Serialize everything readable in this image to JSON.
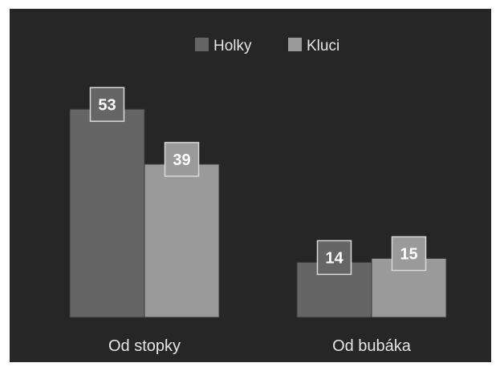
{
  "chart_data": {
    "type": "bar",
    "categories": [
      "Od stopky",
      "Od bubáka"
    ],
    "series": [
      {
        "name": "Holky",
        "values": [
          53,
          14
        ],
        "color": "#656565"
      },
      {
        "name": "Kluci",
        "values": [
          39,
          15
        ],
        "color": "#9a9a9a"
      }
    ],
    "ylim": [
      0,
      60
    ],
    "legend_position": "top-center",
    "grid": false,
    "background_color": "#262626",
    "label_border_color": "#d9d9d9"
  }
}
